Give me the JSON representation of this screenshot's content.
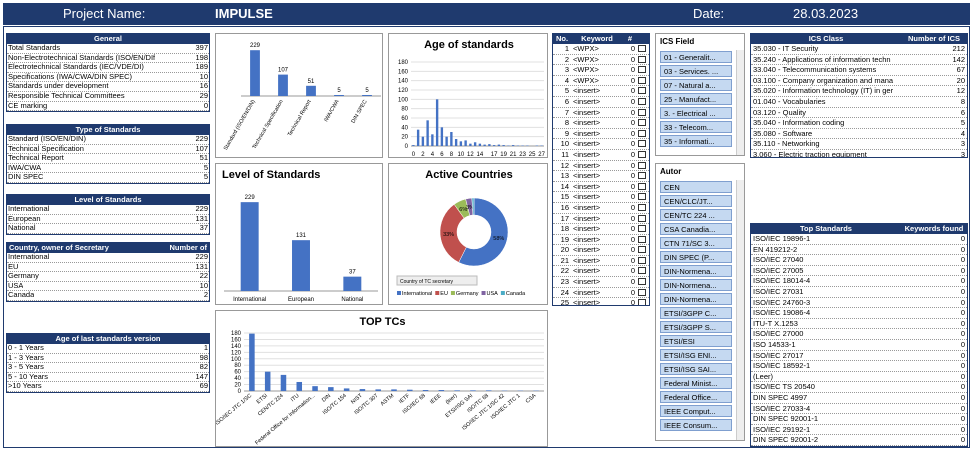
{
  "header": {
    "project_label": "Project Name:",
    "project": "IMPULSE",
    "date_label": "Date:",
    "date": "28.03.2023"
  },
  "tables": [
    {
      "title": "General",
      "rows": [
        [
          "Total Standards",
          397
        ],
        [
          "Non-Electrotechnical Standards (ISO/EN/DIf",
          198
        ],
        [
          "Electrotechnical Standards (IEC/VDE/DI)",
          189
        ],
        [
          "Specifications (IWA/CWA/DIN SPEC)",
          10
        ],
        [
          "Standards under development",
          16
        ],
        [
          "Responsible Technical Committees",
          29
        ],
        [
          "CE marking",
          0
        ]
      ]
    },
    {
      "title": "Type of Standards",
      "rows": [
        [
          "Standard (ISO/EN/DIN)",
          229
        ],
        [
          "Technical Specification",
          107
        ],
        [
          "Technical Report",
          51
        ],
        [
          "IWA/CWA",
          5
        ],
        [
          "DIN SPEC",
          5
        ]
      ]
    },
    {
      "title": "Level of Standards",
      "rows": [
        [
          "International",
          229
        ],
        [
          "European",
          131
        ],
        [
          "National",
          37
        ]
      ]
    },
    {
      "columns": [
        "Country, owner of Secretary",
        "Number of"
      ],
      "rows": [
        [
          "International",
          229
        ],
        [
          "EU",
          131
        ],
        [
          "Germany",
          22
        ],
        [
          "USA",
          10
        ],
        [
          "Canada",
          2
        ]
      ]
    },
    {
      "title": "Age of last standards version",
      "rows": [
        [
          "0 - 1 Years",
          1
        ],
        [
          "1 - 3 Years",
          98
        ],
        [
          "3 - 5 Years",
          82
        ],
        [
          "5 - 10 Years",
          147
        ],
        [
          ">10 Years",
          69
        ]
      ]
    }
  ],
  "charts": [
    {
      "type": "bar",
      "categories": [
        "Standard (ISO/EN/DIN)",
        "Technical Specification",
        "Technical Report",
        "IWA/CWA",
        "DIN SPEC"
      ],
      "values": [
        229,
        107,
        51,
        5,
        5
      ],
      "ylim": [
        0,
        250
      ],
      "data_labels": true,
      "color": "#4472c4"
    },
    {
      "type": "bar",
      "title": "Age of standards",
      "categories": [
        0,
        null,
        2,
        null,
        4,
        null,
        6,
        null,
        8,
        null,
        10,
        null,
        12,
        null,
        14,
        null,
        null,
        17,
        null,
        19,
        null,
        21,
        null,
        23,
        null,
        25,
        null,
        27
      ],
      "values": [
        2,
        35,
        20,
        55,
        25,
        100,
        40,
        20,
        30,
        15,
        10,
        12,
        5,
        8,
        5,
        3,
        4,
        2,
        3,
        2,
        1,
        2,
        1,
        1,
        1,
        0,
        1,
        1
      ],
      "ylim": [
        0,
        180
      ],
      "yticks": [
        0,
        20,
        40,
        60,
        80,
        100,
        120,
        140,
        160,
        180
      ],
      "grid": true,
      "color": "#4472c4"
    },
    {
      "type": "bar",
      "title": "Level of Standards",
      "categories": [
        "International",
        "European",
        "National"
      ],
      "values": [
        229,
        131,
        37
      ],
      "ylim": [
        0,
        250
      ],
      "data_labels": true,
      "color": "#4472c4"
    },
    {
      "type": "pie",
      "title": "Active Countries",
      "categories": [
        "International",
        "EU",
        "Germany",
        "USA",
        "Canada"
      ],
      "values": [
        58,
        33,
        6,
        3,
        1
      ],
      "value_labels": [
        "58%",
        "33%",
        "6%",
        "3%",
        null
      ],
      "colors": [
        "#4472c4",
        "#c0504d",
        "#9bbb59",
        "#8064a2",
        "#4bacc6"
      ],
      "filter": "Country of TC secretary"
    },
    {
      "type": "bar",
      "title": "TOP TCs",
      "categories": [
        "ISO/IEC JTC 1/SC",
        "ETSI",
        "CEN/TC 224",
        "ITU",
        "Federal Office for Information...",
        "DIN",
        "ISO/TC 154",
        "NIST",
        "ISO/TC 307",
        "ASTM",
        "IETF",
        "ISO/IEC 68",
        "IEEE",
        "(leer)",
        "ETSI/ISG SAI",
        "ISO/TC 68",
        "ISO/IEC JTC 1/SC 42",
        "ISO/IEC JTC 1",
        "CSA"
      ],
      "values": [
        178,
        60,
        50,
        28,
        15,
        12,
        8,
        6,
        5,
        5,
        4,
        3,
        3,
        2,
        2,
        2,
        1,
        1,
        1
      ],
      "ylim": [
        0,
        180
      ],
      "yticks": [
        0,
        20,
        40,
        60,
        80,
        100,
        120,
        140,
        160,
        180
      ],
      "grid": true,
      "color": "#4472c4"
    }
  ],
  "keywords": {
    "columns": [
      "No.",
      "Keyword",
      "#"
    ],
    "rows": [
      [
        1,
        "<WPX>",
        0
      ],
      [
        2,
        "<WPX>",
        0
      ],
      [
        3,
        "<WPX>",
        0
      ],
      [
        4,
        "<WPX>",
        0
      ],
      [
        5,
        "<insert>",
        0
      ],
      [
        6,
        "<insert>",
        0
      ],
      [
        7,
        "<insert>",
        0
      ],
      [
        8,
        "<insert>",
        0
      ],
      [
        9,
        "<insert>",
        0
      ],
      [
        10,
        "<insert>",
        0
      ],
      [
        11,
        "<insert>",
        0
      ],
      [
        12,
        "<insert>",
        0
      ],
      [
        13,
        "<insert>",
        0
      ],
      [
        14,
        "<insert>",
        0
      ],
      [
        15,
        "<insert>",
        0
      ],
      [
        16,
        "<insert>",
        0
      ],
      [
        17,
        "<insert>",
        0
      ],
      [
        18,
        "<insert>",
        0
      ],
      [
        19,
        "<insert>",
        0
      ],
      [
        20,
        "<insert>",
        0
      ],
      [
        21,
        "<insert>",
        0
      ],
      [
        22,
        "<insert>",
        0
      ],
      [
        23,
        "<insert>",
        0
      ],
      [
        24,
        "<insert>",
        0
      ],
      [
        25,
        "<insert>",
        0
      ],
      [
        26,
        "<insert>",
        0
      ]
    ]
  },
  "slicers": [
    {
      "title": "ICS Field",
      "items": [
        "01 - Generalit...",
        "03 - Services. ...",
        "07 - Natural a...",
        "25 - Manufact...",
        "3. - Electrical ...",
        "33 - Telecom...",
        "35 - Informati..."
      ]
    },
    {
      "title": "Autor",
      "items": [
        "CEN",
        "CEN/CLC/JT...",
        "CEN/TC 224 ...",
        "CSA Canadia...",
        "CTN 71/SC 3...",
        "DIN SPEC (P...",
        "DIN-Normena...",
        "DIN-Normena...",
        "DIN-Normena...",
        "ETSI/3GPP C...",
        "ETSI/3GPP S...",
        "ETSI/ESI",
        "ETSI/ISG ENI...",
        "ETSI/ISG SAI...",
        "Federal Minist...",
        "Federal Office...",
        "IEEE Comput...",
        "IEEE Consum..."
      ]
    }
  ],
  "ics_table": {
    "columns": [
      "ICS Class",
      "Number of ICS"
    ],
    "rows": [
      [
        "35.030 - IT Security",
        212
      ],
      [
        "35.240 - Applications of information techn",
        142
      ],
      [
        "33.040 - Telecommunication systems",
        67
      ],
      [
        "03.100 - Company organization and mana",
        20
      ],
      [
        "35.020 - Information technology (IT) in ger",
        12
      ],
      [
        "01.040 - Vocabularies",
        8
      ],
      [
        "03.120 - Quality",
        6
      ],
      [
        "35.040 - Information coding",
        5
      ],
      [
        "35.080 - Software",
        4
      ],
      [
        "35.110 - Networking",
        3
      ],
      [
        "3.060 - Electric traction equipment",
        3
      ]
    ]
  },
  "top_standards": {
    "columns": [
      "Top Standards",
      "Keywords found"
    ],
    "rows": [
      [
        "ISO/IEC 19896-1",
        0
      ],
      [
        "EN 419212-2",
        0
      ],
      [
        "ISO/IEC 27040",
        0
      ],
      [
        "ISO/IEC 27005",
        0
      ],
      [
        "ISO/IEC 18014-4",
        0
      ],
      [
        "ISO/IEC 27031",
        0
      ],
      [
        "ISO/IEC 24760-3",
        0
      ],
      [
        "ISO/IEC 19086-4",
        0
      ],
      [
        "ITU-T X.1253",
        0
      ],
      [
        "ISO/IEC 27000",
        0
      ],
      [
        "ISO 14533-1",
        0
      ],
      [
        "ISO/IEC 27017",
        0
      ],
      [
        "ISO/IEC 18592-1",
        0
      ],
      [
        "(Leer)",
        0
      ],
      [
        "ISO/IEC TS 20540",
        0
      ],
      [
        "DIN SPEC 4997",
        0
      ],
      [
        "ISO/IEC 27033-4",
        0
      ],
      [
        "DIN SPEC 92001-1",
        0
      ],
      [
        "ISO/IEC 29192-1",
        0
      ],
      [
        "DIN SPEC 92001-2",
        0
      ],
      [
        "ANSI X 9.138",
        0
      ]
    ]
  }
}
